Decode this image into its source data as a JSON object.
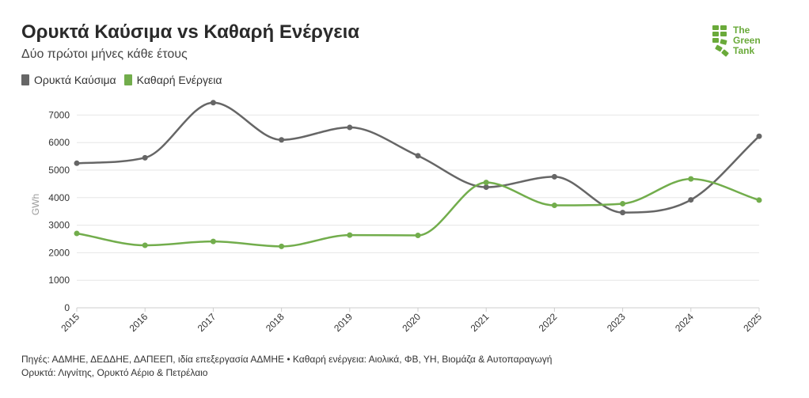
{
  "header": {
    "title": "Ορυκτά Καύσιμα vs Καθαρή Ενέργεια",
    "subtitle": "Δύο πρώτοι μήνες κάθε έτους"
  },
  "logo": {
    "line1": "The",
    "line2": "Green",
    "line3": "Tank",
    "color": "#6aaa3a"
  },
  "footer": {
    "line1": "Πηγές: ΑΔΜΗΕ, ΔΕΔΔΗΕ, ΔΑΠΕΕΠ, ιδία επεξεργασία ΑΔΜΗΕ • Καθαρή ενέργεια: Αιολικά, ΦΒ, ΥΗ, Βιομάζα & Αυτοπαραγωγή",
    "line2": "Ορυκτά: Λιγνίτης, Ορυκτό Αέριο & Πετρέλαιο"
  },
  "chart_data": {
    "type": "line",
    "title": "Ορυκτά Καύσιμα vs Καθαρή Ενέργεια",
    "subtitle": "Δύο πρώτοι μήνες κάθε έτους",
    "xlabel": "",
    "ylabel": "GWh",
    "x": [
      "2015",
      "2016",
      "2017",
      "2018",
      "2019",
      "2020",
      "2021",
      "2022",
      "2023",
      "2024",
      "2025"
    ],
    "yticks": [
      "0",
      "1000",
      "2000",
      "3000",
      "4000",
      "5000",
      "6000",
      "7000"
    ],
    "ylim": [
      0,
      7500
    ],
    "grid": true,
    "legend_position": "top-left",
    "series": [
      {
        "name": "Ορυκτά Καύσιμα",
        "color": "#666666",
        "values": [
          5250,
          5450,
          7450,
          6100,
          6550,
          5520,
          4380,
          4760,
          3460,
          3920,
          6230
        ]
      },
      {
        "name": "Καθαρή Ενέργεια",
        "color": "#72ad4c",
        "values": [
          2700,
          2270,
          2410,
          2230,
          2640,
          2630,
          4550,
          3720,
          3780,
          4680,
          3910
        ]
      }
    ]
  }
}
